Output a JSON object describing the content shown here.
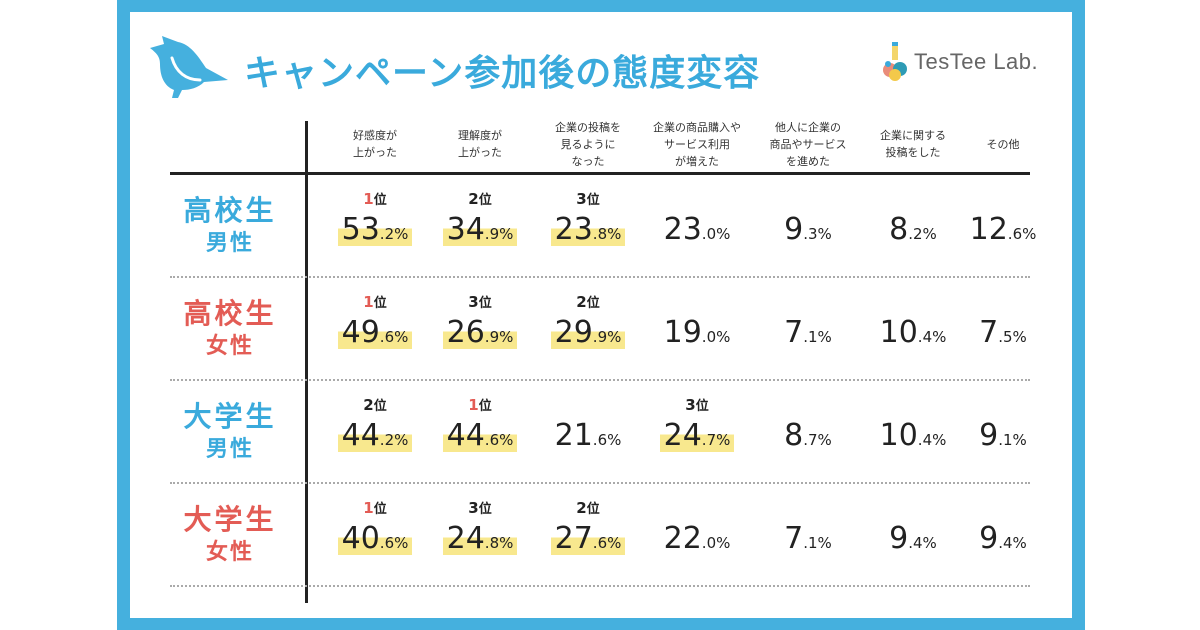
{
  "title": "キャンペーン参加後の態度変容",
  "logo": {
    "text": "TesTee Lab."
  },
  "colors": {
    "frame": "#45b0de",
    "male": "#3aaadc",
    "female": "#e35c55",
    "highlight": "#f8e88e",
    "rank_first": "#e35c55"
  },
  "rank_suffix": "位",
  "chart_data": {
    "type": "table",
    "title": "キャンペーン参加後の態度変容",
    "columns": [
      "好感度が\n上がった",
      "理解度が\n上がった",
      "企業の投稿を\n見るように\nなった",
      "企業の商品購入や\nサービス利用\nが増えた",
      "他人に企業の\n商品やサービス\nを進めた",
      "企業に関する\n投稿をした",
      "その他"
    ],
    "rows": [
      {
        "label1": "高校生",
        "label2": "男性",
        "gender": "male",
        "values": [
          53.2,
          34.9,
          23.8,
          23.0,
          9.3,
          8.2,
          12.6
        ],
        "ranks": [
          1,
          2,
          3,
          null,
          null,
          null,
          null
        ]
      },
      {
        "label1": "高校生",
        "label2": "女性",
        "gender": "female",
        "values": [
          49.6,
          26.9,
          29.9,
          19.0,
          7.1,
          10.4,
          7.5
        ],
        "ranks": [
          1,
          3,
          2,
          null,
          null,
          null,
          null
        ]
      },
      {
        "label1": "大学生",
        "label2": "男性",
        "gender": "male",
        "values": [
          44.2,
          44.6,
          21.6,
          24.7,
          8.7,
          10.4,
          9.1
        ],
        "ranks": [
          2,
          1,
          null,
          3,
          null,
          null,
          null
        ]
      },
      {
        "label1": "大学生",
        "label2": "女性",
        "gender": "female",
        "values": [
          40.6,
          24.8,
          27.6,
          22.0,
          7.1,
          9.4,
          9.4
        ],
        "ranks": [
          1,
          3,
          2,
          null,
          null,
          null,
          null
        ]
      }
    ],
    "unit": "%"
  }
}
